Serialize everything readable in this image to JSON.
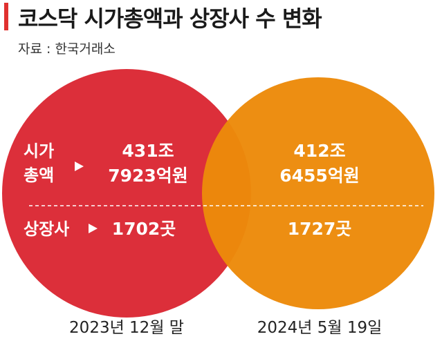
{
  "header": {
    "title": "코스닥 시가총액과 상장사 수 변화",
    "source": "자료 : 한국거래소"
  },
  "colors": {
    "accent": "#e0312f",
    "circle_2023": "#dc2f3a",
    "circle_2024": "#ec8a0a",
    "text_on_circle": "#ffffff",
    "label_text": "#222222"
  },
  "labels": {
    "market_cap_line1": "시가",
    "market_cap_line2": "총액",
    "listed_count": "상장사",
    "arrow_icon": "triangle-right-icon"
  },
  "chart_data": {
    "type": "table",
    "title": "코스닥 시가총액과 상장사 수 변화",
    "periods": [
      {
        "date": "2023년 12월 말",
        "market_cap_line1": "431조",
        "market_cap_line2": "7923억원",
        "listed_count": "1702곳",
        "market_cap_won": 431792300000000,
        "listed_companies": 1702
      },
      {
        "date": "2024년 5월 19일",
        "market_cap_line1": "412조",
        "market_cap_line2": "6455억원",
        "listed_count": "1727곳",
        "market_cap_won": 412645500000000,
        "listed_companies": 1727
      }
    ]
  }
}
